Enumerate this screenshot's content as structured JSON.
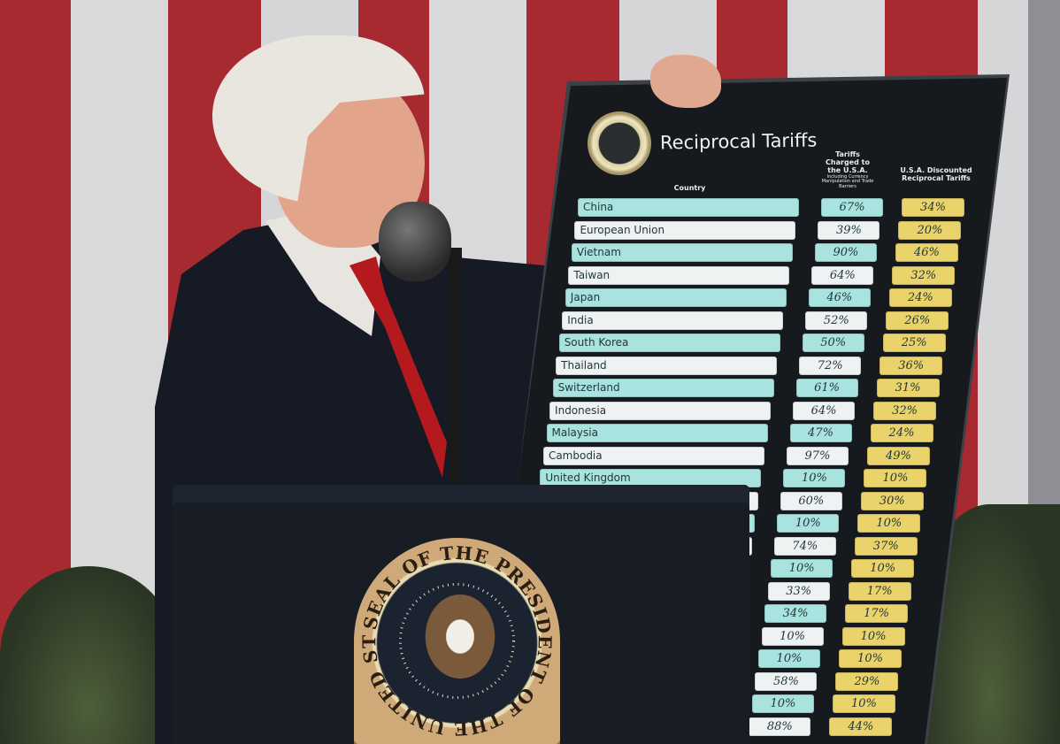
{
  "board": {
    "title": "Reciprocal Tariffs",
    "col_country": "Country",
    "col_charged": "Tariffs Charged to the U.S.A.",
    "col_charged_sub": "Including Currency Manipulation and Trade Barriers",
    "col_reciprocal": "U.S.A. Discounted Reciprocal Tariffs",
    "colors": {
      "teal": "#a9e3df",
      "white": "#eef2f3",
      "gold": "#e9d36a"
    },
    "rows": [
      {
        "country": "China",
        "charged": "67%",
        "reciprocal": "34%"
      },
      {
        "country": "European Union",
        "charged": "39%",
        "reciprocal": "20%"
      },
      {
        "country": "Vietnam",
        "charged": "90%",
        "reciprocal": "46%"
      },
      {
        "country": "Taiwan",
        "charged": "64%",
        "reciprocal": "32%"
      },
      {
        "country": "Japan",
        "charged": "46%",
        "reciprocal": "24%"
      },
      {
        "country": "India",
        "charged": "52%",
        "reciprocal": "26%"
      },
      {
        "country": "South Korea",
        "charged": "50%",
        "reciprocal": "25%"
      },
      {
        "country": "Thailand",
        "charged": "72%",
        "reciprocal": "36%"
      },
      {
        "country": "Switzerland",
        "charged": "61%",
        "reciprocal": "31%"
      },
      {
        "country": "Indonesia",
        "charged": "64%",
        "reciprocal": "32%"
      },
      {
        "country": "Malaysia",
        "charged": "47%",
        "reciprocal": "24%"
      },
      {
        "country": "Cambodia",
        "charged": "97%",
        "reciprocal": "49%"
      },
      {
        "country": "United Kingdom",
        "charged": "10%",
        "reciprocal": "10%"
      },
      {
        "country": "",
        "charged": "60%",
        "reciprocal": "30%"
      },
      {
        "country": "",
        "charged": "10%",
        "reciprocal": "10%"
      },
      {
        "country": "",
        "charged": "74%",
        "reciprocal": "37%"
      },
      {
        "country": "",
        "charged": "10%",
        "reciprocal": "10%"
      },
      {
        "country": "",
        "charged": "33%",
        "reciprocal": "17%"
      },
      {
        "country": "",
        "charged": "34%",
        "reciprocal": "17%"
      },
      {
        "country": "",
        "charged": "10%",
        "reciprocal": "10%"
      },
      {
        "country": "",
        "charged": "10%",
        "reciprocal": "10%"
      },
      {
        "country": "",
        "charged": "58%",
        "reciprocal": "29%"
      },
      {
        "country": "",
        "charged": "10%",
        "reciprocal": "10%"
      },
      {
        "country": "",
        "charged": "88%",
        "reciprocal": "44%"
      }
    ]
  },
  "seal": {
    "text": "SEAL OF THE PRESIDENT OF THE UNITED STATES"
  }
}
